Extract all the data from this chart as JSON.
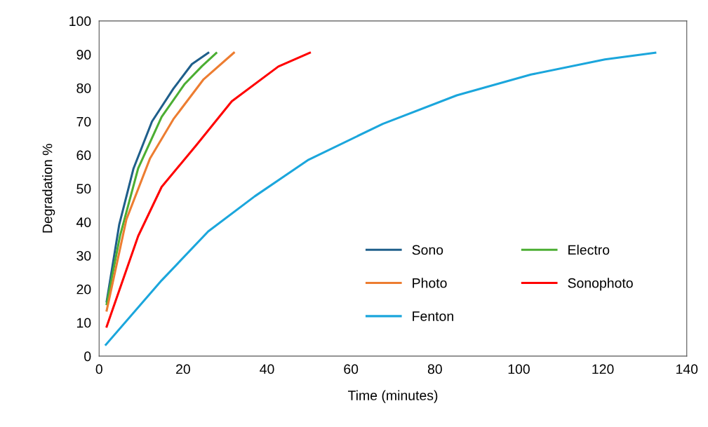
{
  "chart_data": {
    "type": "line",
    "xlabel": "Time (minutes)",
    "ylabel": "Degradation %",
    "xlim": [
      0,
      140
    ],
    "xticks": [
      0,
      20,
      40,
      60,
      80,
      100,
      120,
      140
    ],
    "ylim": [
      0,
      100
    ],
    "yticks": [
      0,
      10,
      20,
      30,
      40,
      50,
      60,
      70,
      80,
      90,
      100
    ],
    "grid": false,
    "legend": "lower right",
    "marker": "none",
    "line_style": "solid",
    "series": [
      {
        "name": "Sono",
        "color": "#1f5f8b",
        "x": [
          1.8,
          4.8,
          8.2,
          12.6,
          17.7,
          22.1,
          26
        ],
        "values": [
          16.3,
          39.3,
          56,
          70,
          79.8,
          87.1,
          90.5
        ]
      },
      {
        "name": "Electro",
        "color": "#4cae33",
        "x": [
          1.8,
          5,
          9.3,
          14.9,
          20.4,
          24.5,
          27.9
        ],
        "values": [
          15.5,
          36,
          56,
          71.4,
          81.2,
          86.5,
          90.4
        ]
      },
      {
        "name": "Photo",
        "color": "#ed7d31",
        "x": [
          1.8,
          6.5,
          12.1,
          17.7,
          24.9,
          32.1
        ],
        "values": [
          13.6,
          40.8,
          58.9,
          70.7,
          82.6,
          90.5
        ]
      },
      {
        "name": "Sonophoto",
        "color": "#ff0000",
        "x": [
          1.8,
          9.3,
          14.9,
          23.2,
          31.6,
          42.7,
          50.2
        ],
        "values": [
          8.8,
          35.8,
          50.5,
          63,
          76,
          86.4,
          90.5
        ]
      },
      {
        "name": "Fenton",
        "color": "#1ba6dc",
        "x": [
          1.6,
          14.9,
          26,
          37.1,
          49.9,
          67.6,
          85.2,
          102.9,
          120.5,
          132.5
        ],
        "values": [
          3.4,
          22.6,
          37.2,
          47.7,
          58.6,
          69.3,
          77.8,
          84,
          88.5,
          90.5
        ]
      }
    ]
  }
}
